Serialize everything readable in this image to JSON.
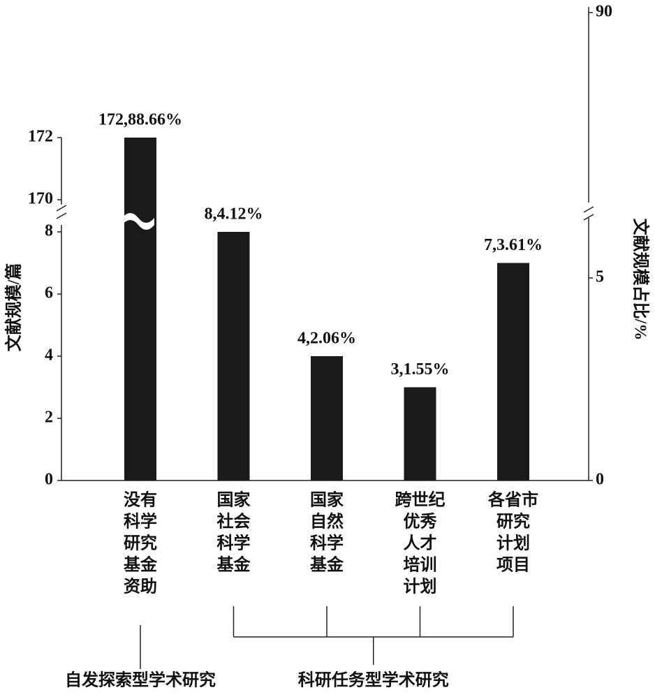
{
  "chart_data": {
    "type": "bar",
    "y_label": "文献规模/篇",
    "y2_label": "文献规模占比/%",
    "categories": [
      [
        "没有",
        "科学",
        "研究",
        "基金",
        "资助"
      ],
      [
        "国家",
        "社会",
        "科学",
        "基金"
      ],
      [
        "国家",
        "自然",
        "科学",
        "基金"
      ],
      [
        "跨世纪",
        "优秀",
        "人才",
        "培训",
        "计划"
      ],
      [
        "各省市",
        "研究",
        "计划",
        "项目"
      ]
    ],
    "values": [
      172,
      8,
      4,
      3,
      7
    ],
    "value_labels": [
      "172,88.66%",
      "8,4.12%",
      "4,2.06%",
      "3,1.55%",
      "7,3.61%"
    ],
    "color": "#1a1a1a",
    "ylim": [
      0,
      172
    ],
    "ybreak": [
      8,
      170
    ],
    "yticks": [
      0,
      2,
      4,
      6,
      8,
      170,
      172
    ],
    "y2lim": [
      0,
      90
    ],
    "y2break": [
      5,
      90
    ],
    "y2ticks": [
      0,
      5,
      90
    ],
    "groups": [
      "自发探索型学术研究",
      "科研任务型学术研究"
    ]
  }
}
